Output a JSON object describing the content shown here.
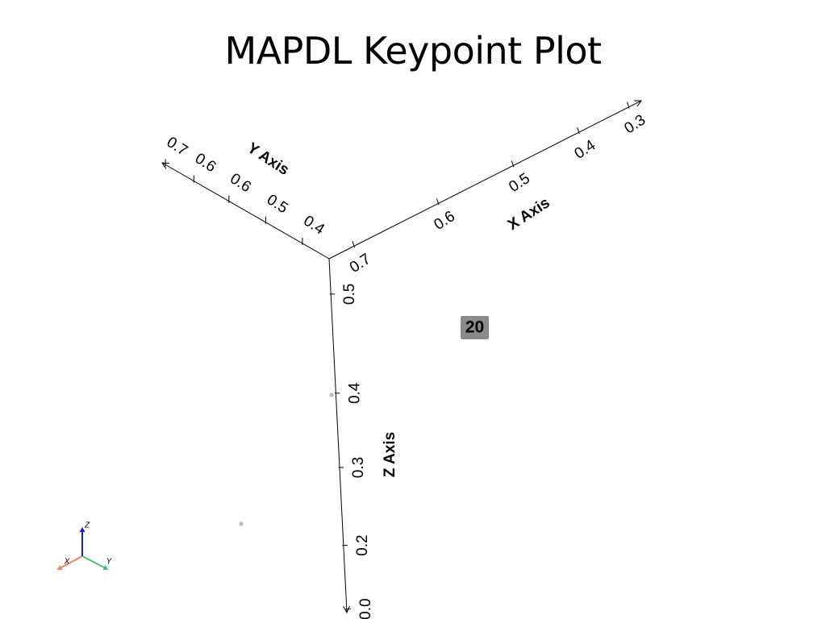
{
  "title": "MAPDL Keypoint Plot",
  "chart_data": {
    "type": "scatter",
    "title": "MAPDL Keypoint Plot",
    "axes": {
      "x": {
        "label": "X Axis",
        "ticks": [
          "0.7",
          "0.6",
          "0.5",
          "0.4",
          "0.3"
        ]
      },
      "y": {
        "label": "Y Axis",
        "ticks": [
          "0.4",
          "0.5",
          "0.6",
          "0.6",
          "0.7"
        ]
      },
      "z": {
        "label": "Z Axis",
        "ticks": [
          "0.5",
          "0.4",
          "0.3",
          "0.2",
          "0.0"
        ]
      }
    },
    "keypoint_labels": [
      "20"
    ],
    "grid": false,
    "legend": "none"
  },
  "orientation_triad": {
    "x": "X",
    "y": "Y",
    "z": "Z"
  },
  "colors": {
    "background": "#ffffff",
    "axis_line": "#000000",
    "label_box": "#8a8a8a",
    "triad_x": "#f08066",
    "triad_y": "#4cbf7a",
    "triad_z": "#1a1ad6",
    "keypoint": "#bfbfbf"
  }
}
